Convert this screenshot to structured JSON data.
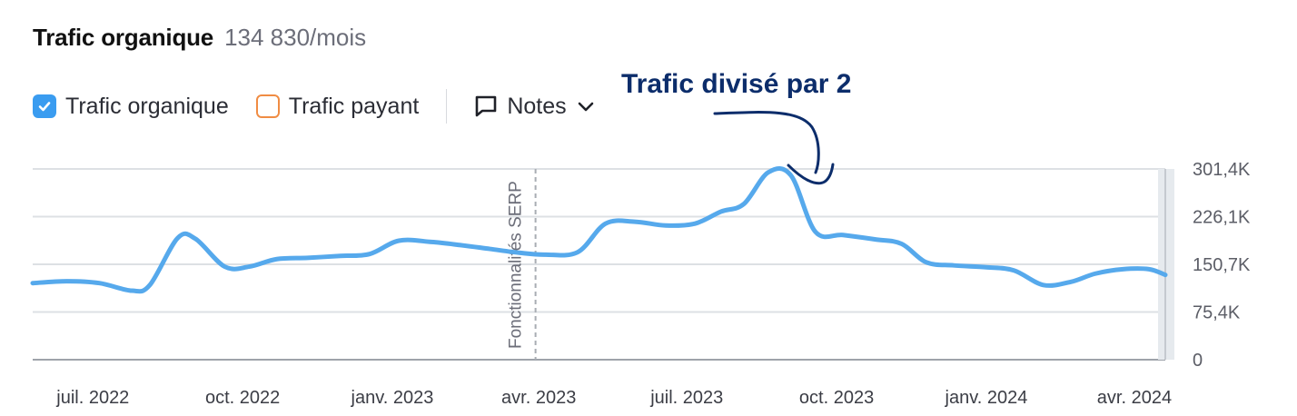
{
  "header": {
    "title": "Trafic organique",
    "subtitle": "134 830/mois"
  },
  "legend": {
    "organic_label": "Trafic organique",
    "paid_label": "Trafic payant",
    "notes_label": "Notes",
    "organic_color": "#3a9cf0",
    "paid_color": "#f08c43"
  },
  "annotation": {
    "text": "Trafic divisé par 2",
    "color": "#0c2d6b"
  },
  "chart_data": {
    "type": "line",
    "title": "Trafic organique",
    "grid": true,
    "ylim": [
      0,
      301400
    ],
    "yticks": [
      {
        "value": 301400,
        "label": "301,4K"
      },
      {
        "value": 226100,
        "label": "226,1K"
      },
      {
        "value": 150700,
        "label": "150,7K"
      },
      {
        "value": 75400,
        "label": "75,4K"
      },
      {
        "value": 0,
        "label": "0"
      }
    ],
    "xticks": [
      {
        "date": "2022-07",
        "label": "juil. 2022"
      },
      {
        "date": "2022-10",
        "label": "oct. 2022"
      },
      {
        "date": "2023-01",
        "label": "janv. 2023"
      },
      {
        "date": "2023-04",
        "label": "avr. 2023"
      },
      {
        "date": "2023-07",
        "label": "juil. 2023"
      },
      {
        "date": "2023-10",
        "label": "oct. 2023"
      },
      {
        "date": "2024-01",
        "label": "janv. 2024"
      },
      {
        "date": "2024-04",
        "label": "avr. 2024"
      }
    ],
    "xlim": [
      "2022-05-25",
      "2024-04-20"
    ],
    "marker": {
      "date": "2023-03-30",
      "label": "Fonctionnalités SERP"
    },
    "series": [
      {
        "name": "Trafic organique",
        "color": "#56a9ec",
        "points": [
          [
            "2022-05-25",
            121000
          ],
          [
            "2022-06-15",
            124000
          ],
          [
            "2022-07-05",
            121000
          ],
          [
            "2022-07-25",
            109000
          ],
          [
            "2022-08-05",
            118000
          ],
          [
            "2022-08-22",
            192000
          ],
          [
            "2022-09-02",
            191000
          ],
          [
            "2022-09-20",
            147000
          ],
          [
            "2022-10-05",
            147000
          ],
          [
            "2022-10-22",
            159000
          ],
          [
            "2022-11-10",
            161000
          ],
          [
            "2022-11-30",
            164000
          ],
          [
            "2022-12-18",
            167000
          ],
          [
            "2023-01-05",
            188000
          ],
          [
            "2023-01-25",
            186000
          ],
          [
            "2023-02-12",
            181000
          ],
          [
            "2023-03-02",
            175000
          ],
          [
            "2023-03-20",
            169000
          ],
          [
            "2023-04-05",
            166000
          ],
          [
            "2023-04-25",
            170000
          ],
          [
            "2023-05-12",
            215000
          ],
          [
            "2023-05-30",
            218000
          ],
          [
            "2023-06-18",
            212000
          ],
          [
            "2023-07-06",
            215000
          ],
          [
            "2023-07-22",
            234000
          ],
          [
            "2023-08-05",
            246000
          ],
          [
            "2023-08-20",
            296000
          ],
          [
            "2023-09-03",
            291000
          ],
          [
            "2023-09-18",
            202000
          ],
          [
            "2023-10-05",
            197000
          ],
          [
            "2023-10-25",
            190000
          ],
          [
            "2023-11-10",
            183000
          ],
          [
            "2023-11-25",
            154000
          ],
          [
            "2023-12-12",
            149000
          ],
          [
            "2024-01-01",
            146000
          ],
          [
            "2024-01-18",
            141000
          ],
          [
            "2024-02-05",
            118000
          ],
          [
            "2024-02-22",
            123000
          ],
          [
            "2024-03-08",
            136000
          ],
          [
            "2024-03-25",
            143000
          ],
          [
            "2024-04-10",
            143000
          ],
          [
            "2024-04-20",
            134000
          ]
        ]
      }
    ]
  }
}
